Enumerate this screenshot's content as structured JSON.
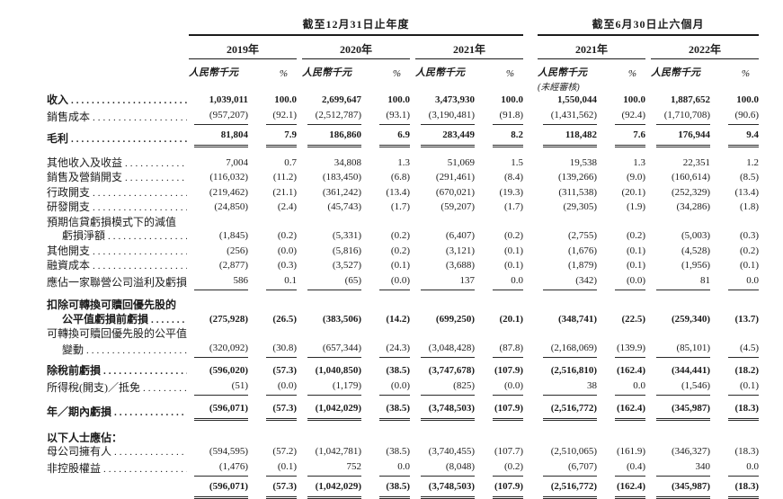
{
  "table": {
    "period_groups": [
      {
        "label": "截至12月31日止年度"
      },
      {
        "label": "截至6月30日止六個月"
      }
    ],
    "years": [
      "2019年",
      "2020年",
      "2021年",
      "2021年",
      "2022年"
    ],
    "unit_label": "人民幣千元",
    "pct_label": "%",
    "unaudited_note": "(未經審核)",
    "rows": [
      {
        "type": "data",
        "label": "收入",
        "bold": true,
        "dots": true,
        "rule": "",
        "values": [
          "1,039,011",
          "100.0",
          "2,699,647",
          "100.0",
          "3,473,930",
          "100.0",
          "1,550,044",
          "100.0",
          "1,887,652",
          "100.0"
        ]
      },
      {
        "type": "data",
        "label": "銷售成本",
        "dots": true,
        "rule": "s",
        "values": [
          "(957,207)",
          "(92.1)",
          "(2,512,787)",
          "(93.1)",
          "(3,190,481)",
          "(91.8)",
          "(1,431,562)",
          "(92.4)",
          "(1,710,708)",
          "(90.6)"
        ]
      },
      {
        "type": "spacer",
        "h": 4
      },
      {
        "type": "data",
        "label": "毛利",
        "bold": true,
        "dots": true,
        "rule": "d",
        "values": [
          "81,804",
          "7.9",
          "186,860",
          "6.9",
          "283,449",
          "8.2",
          "118,482",
          "7.6",
          "176,944",
          "9.4"
        ]
      },
      {
        "type": "spacer",
        "h": 10
      },
      {
        "type": "data",
        "label": "其他收入及收益",
        "dots": true,
        "rule": "",
        "values": [
          "7,004",
          "0.7",
          "34,808",
          "1.3",
          "51,069",
          "1.5",
          "19,538",
          "1.3",
          "22,351",
          "1.2"
        ]
      },
      {
        "type": "data",
        "label": "銷售及營銷開支",
        "dots": true,
        "rule": "",
        "values": [
          "(116,032)",
          "(11.2)",
          "(183,450)",
          "(6.8)",
          "(291,461)",
          "(8.4)",
          "(139,266)",
          "(9.0)",
          "(160,614)",
          "(8.5)"
        ]
      },
      {
        "type": "data",
        "label": "行政開支",
        "dots": true,
        "rule": "",
        "values": [
          "(219,462)",
          "(21.1)",
          "(361,242)",
          "(13.4)",
          "(670,021)",
          "(19.3)",
          "(311,538)",
          "(20.1)",
          "(252,329)",
          "(13.4)"
        ]
      },
      {
        "type": "data",
        "label": "研發開支",
        "dots": true,
        "rule": "",
        "values": [
          "(24,850)",
          "(2.4)",
          "(45,743)",
          "(1.7)",
          "(59,207)",
          "(1.7)",
          "(29,305)",
          "(1.9)",
          "(34,286)",
          "(1.8)"
        ]
      },
      {
        "type": "label",
        "label": "預期信貸虧損模式下的減值"
      },
      {
        "type": "data",
        "label": "虧損淨額",
        "indent": true,
        "dots": true,
        "rule": "",
        "values": [
          "(1,845)",
          "(0.2)",
          "(5,331)",
          "(0.2)",
          "(6,407)",
          "(0.2)",
          "(2,755)",
          "(0.2)",
          "(5,003)",
          "(0.3)"
        ]
      },
      {
        "type": "data",
        "label": "其他開支",
        "dots": true,
        "rule": "",
        "values": [
          "(256)",
          "(0.0)",
          "(5,816)",
          "(0.2)",
          "(3,121)",
          "(0.1)",
          "(1,676)",
          "(0.1)",
          "(4,528)",
          "(0.2)"
        ]
      },
      {
        "type": "data",
        "label": "融資成本",
        "dots": true,
        "rule": "",
        "values": [
          "(2,877)",
          "(0.3)",
          "(3,527)",
          "(0.1)",
          "(3,688)",
          "(0.1)",
          "(1,879)",
          "(0.1)",
          "(1,956)",
          "(0.1)"
        ]
      },
      {
        "type": "data",
        "label": "應佔一家聯營公司溢利及虧損",
        "dots": true,
        "rule": "s",
        "values": [
          "586",
          "0.1",
          "(65)",
          "(0.0)",
          "137",
          "0.0",
          "(342)",
          "(0.0)",
          "81",
          "0.0"
        ]
      },
      {
        "type": "spacer",
        "h": 9
      },
      {
        "type": "label",
        "label": "扣除可轉換可贖回優先股的",
        "bold": true
      },
      {
        "type": "data",
        "label": "公平值虧損前虧損",
        "bold": true,
        "indent": true,
        "dots": true,
        "rule": "",
        "values": [
          "(275,928)",
          "(26.5)",
          "(383,506)",
          "(14.2)",
          "(699,250)",
          "(20.1)",
          "(348,741)",
          "(22.5)",
          "(259,340)",
          "(13.7)"
        ]
      },
      {
        "type": "label",
        "label": "可轉換可贖回優先股的公平值"
      },
      {
        "type": "data",
        "label": "變動",
        "indent": true,
        "dots": true,
        "rule": "s",
        "values": [
          "(320,092)",
          "(30.8)",
          "(657,344)",
          "(24.3)",
          "(3,048,428)",
          "(87.8)",
          "(2,168,069)",
          "(139.9)",
          "(85,101)",
          "(4.5)"
        ]
      },
      {
        "type": "spacer",
        "h": 7
      },
      {
        "type": "data",
        "label": "除稅前虧損",
        "bold": true,
        "dots": true,
        "rule": "",
        "values": [
          "(596,020)",
          "(57.3)",
          "(1,040,850)",
          "(38.5)",
          "(3,747,678)",
          "(107.9)",
          "(2,516,810)",
          "(162.4)",
          "(344,441)",
          "(18.2)"
        ]
      },
      {
        "type": "data",
        "label": "所得稅(開支)／抵免",
        "dots": true,
        "rule": "s",
        "values": [
          "(51)",
          "(0.0)",
          "(1,179)",
          "(0.0)",
          "(825)",
          "(0.0)",
          "38",
          "0.0",
          "(1,546)",
          "(0.1)"
        ]
      },
      {
        "type": "spacer",
        "h": 7
      },
      {
        "type": "data",
        "label": "年／期內虧損",
        "bold": true,
        "dots": true,
        "rule": "d",
        "values": [
          "(596,071)",
          "(57.3)",
          "(1,042,029)",
          "(38.5)",
          "(3,748,503)",
          "(107.9)",
          "(2,516,772)",
          "(162.4)",
          "(345,987)",
          "(18.3)"
        ]
      },
      {
        "type": "spacer",
        "h": 12
      },
      {
        "type": "section",
        "label": "以下人士應佔：",
        "bold": true
      },
      {
        "type": "data",
        "label": "母公司擁有人",
        "dots": true,
        "rule": "",
        "values": [
          "(594,595)",
          "(57.2)",
          "(1,042,781)",
          "(38.5)",
          "(3,740,455)",
          "(107.7)",
          "(2,510,065)",
          "(161.9)",
          "(346,327)",
          "(18.3)"
        ]
      },
      {
        "type": "data",
        "label": "非控股權益",
        "dots": true,
        "rule": "s",
        "values": [
          "(1,476)",
          "(0.1)",
          "752",
          "0.0",
          "(8,048)",
          "(0.2)",
          "(6,707)",
          "(0.4)",
          "340",
          "0.0"
        ]
      },
      {
        "type": "spacer",
        "h": 4
      },
      {
        "type": "data",
        "label": "",
        "bold": true,
        "dots": false,
        "rule": "d",
        "values": [
          "(596,071)",
          "(57.3)",
          "(1,042,029)",
          "(38.5)",
          "(3,748,503)",
          "(107.9)",
          "(2,516,772)",
          "(162.4)",
          "(345,987)",
          "(18.3)"
        ]
      }
    ]
  }
}
